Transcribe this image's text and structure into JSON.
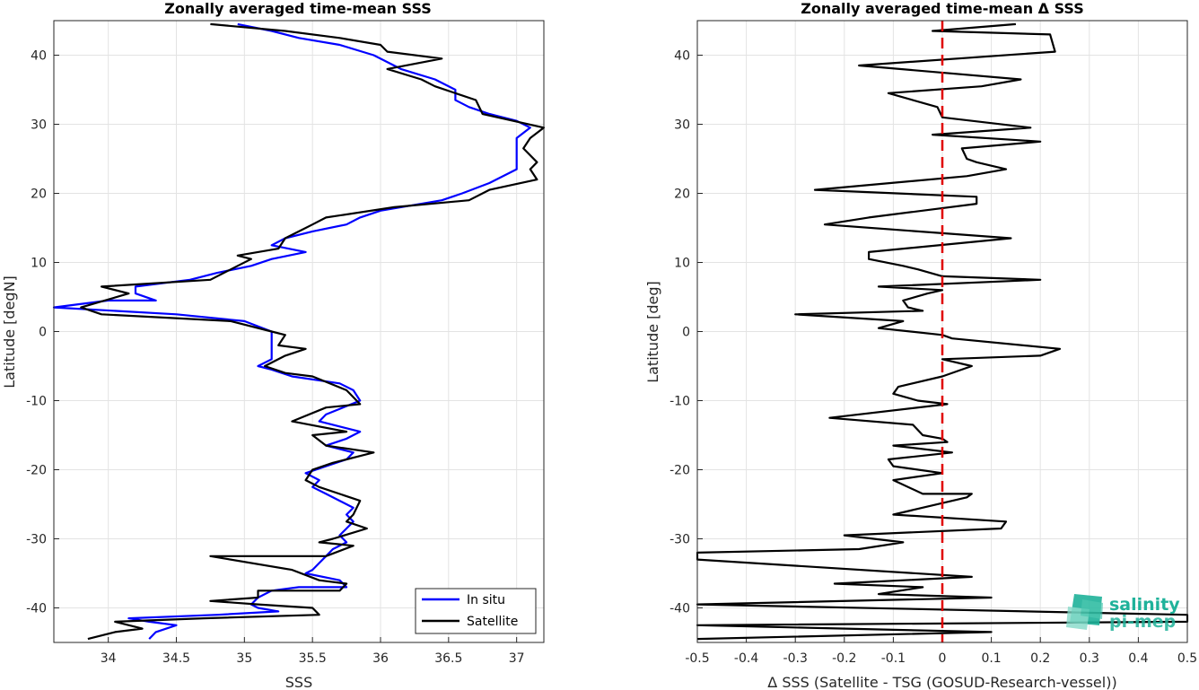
{
  "chart_data": [
    {
      "type": "line",
      "title": "Zonally averaged time-mean SSS",
      "xlabel": "SSS",
      "ylabel": "Latitude [degN]",
      "xlim": [
        33.6,
        37.2
      ],
      "ylim": [
        -45,
        45
      ],
      "xticks": [
        "34",
        "34.5",
        "35",
        "35.5",
        "36",
        "36.5",
        "37"
      ],
      "yticks": [
        "-40",
        "-30",
        "-20",
        "-10",
        "0",
        "10",
        "20",
        "30",
        "40"
      ],
      "grid": true,
      "legend_position": "bottom-right",
      "series": [
        {
          "name": "In situ",
          "color": "#0000ff",
          "points": [
            [
              34.3,
              -44.5
            ],
            [
              34.35,
              -43.5
            ],
            [
              34.5,
              -42.5
            ],
            [
              34.3,
              -42
            ],
            [
              34.15,
              -41.5
            ],
            [
              34.8,
              -41
            ],
            [
              35.25,
              -40.5
            ],
            [
              35.1,
              -40
            ],
            [
              35.05,
              -39.5
            ],
            [
              35.1,
              -38.5
            ],
            [
              35.2,
              -37.5
            ],
            [
              35.4,
              -37
            ],
            [
              35.75,
              -37
            ],
            [
              35.7,
              -36
            ],
            [
              35.45,
              -35
            ],
            [
              35.5,
              -34.5
            ],
            [
              35.55,
              -33.5
            ],
            [
              35.6,
              -32.5
            ],
            [
              35.65,
              -31.5
            ],
            [
              35.75,
              -30.5
            ],
            [
              35.7,
              -29.5
            ],
            [
              35.75,
              -28.5
            ],
            [
              35.8,
              -27.5
            ],
            [
              35.75,
              -26.5
            ],
            [
              35.8,
              -25.5
            ],
            [
              35.7,
              -24.5
            ],
            [
              35.6,
              -23.5
            ],
            [
              35.5,
              -22.5
            ],
            [
              35.55,
              -21.5
            ],
            [
              35.45,
              -20.5
            ],
            [
              35.6,
              -19.5
            ],
            [
              35.75,
              -18.5
            ],
            [
              35.8,
              -17.5
            ],
            [
              35.6,
              -16.5
            ],
            [
              35.75,
              -15.5
            ],
            [
              35.85,
              -14.5
            ],
            [
              35.55,
              -13
            ],
            [
              35.6,
              -12
            ],
            [
              35.85,
              -10
            ],
            [
              35.8,
              -8.5
            ],
            [
              35.7,
              -7.5
            ],
            [
              35.35,
              -6.5
            ],
            [
              35.2,
              -5.5
            ],
            [
              35.1,
              -5
            ],
            [
              35.2,
              -4
            ],
            [
              35.2,
              -2.5
            ],
            [
              35.2,
              -1
            ],
            [
              35.2,
              0
            ],
            [
              35.0,
              1.5
            ],
            [
              34.5,
              2.5
            ],
            [
              33.6,
              3.5
            ],
            [
              34.0,
              4.5
            ],
            [
              34.35,
              4.5
            ],
            [
              34.2,
              5.5
            ],
            [
              34.2,
              6.5
            ],
            [
              34.6,
              7.5
            ],
            [
              34.8,
              8.5
            ],
            [
              35.05,
              9.5
            ],
            [
              35.2,
              10.5
            ],
            [
              35.45,
              11.5
            ],
            [
              35.2,
              12.5
            ],
            [
              35.3,
              13.5
            ],
            [
              35.5,
              14.5
            ],
            [
              35.75,
              15.5
            ],
            [
              35.85,
              16.5
            ],
            [
              36.0,
              17.5
            ],
            [
              36.45,
              19
            ],
            [
              36.6,
              20
            ],
            [
              36.8,
              21.5
            ],
            [
              37.0,
              23.5
            ],
            [
              37.0,
              25
            ],
            [
              37.0,
              26.5
            ],
            [
              37.0,
              28
            ],
            [
              37.1,
              29.5
            ],
            [
              37.0,
              30.5
            ],
            [
              36.8,
              31.5
            ],
            [
              36.65,
              32.5
            ],
            [
              36.55,
              33.5
            ],
            [
              36.55,
              35
            ],
            [
              36.4,
              36.5
            ],
            [
              36.15,
              38
            ],
            [
              35.95,
              40
            ],
            [
              35.7,
              41.5
            ],
            [
              35.4,
              42.5
            ],
            [
              35.2,
              43.5
            ],
            [
              34.95,
              44.5
            ]
          ]
        },
        {
          "name": "Satellite",
          "color": "#000000",
          "points": [
            [
              33.85,
              -44.5
            ],
            [
              34.05,
              -43.5
            ],
            [
              34.25,
              -43
            ],
            [
              34.05,
              -42
            ],
            [
              34.7,
              -41.5
            ],
            [
              35.55,
              -41
            ],
            [
              35.5,
              -40
            ],
            [
              35.1,
              -39.5
            ],
            [
              34.75,
              -39
            ],
            [
              35.1,
              -38.5
            ],
            [
              35.1,
              -37.5
            ],
            [
              35.7,
              -37.5
            ],
            [
              35.75,
              -36.5
            ],
            [
              35.55,
              -36
            ],
            [
              35.35,
              -34.5
            ],
            [
              34.75,
              -32.5
            ],
            [
              35.6,
              -32.5
            ],
            [
              35.8,
              -31
            ],
            [
              35.55,
              -30.5
            ],
            [
              35.65,
              -30
            ],
            [
              35.9,
              -28.5
            ],
            [
              35.75,
              -27.5
            ],
            [
              35.8,
              -26.5
            ],
            [
              35.85,
              -24.5
            ],
            [
              35.55,
              -22.5
            ],
            [
              35.45,
              -21.5
            ],
            [
              35.5,
              -20
            ],
            [
              35.65,
              -19
            ],
            [
              35.75,
              -18.5
            ],
            [
              35.95,
              -17.5
            ],
            [
              35.6,
              -16.5
            ],
            [
              35.5,
              -15
            ],
            [
              35.75,
              -14.5
            ],
            [
              35.35,
              -13
            ],
            [
              35.6,
              -11
            ],
            [
              35.85,
              -10.5
            ],
            [
              35.75,
              -8.5
            ],
            [
              35.5,
              -6.5
            ],
            [
              35.3,
              -6
            ],
            [
              35.15,
              -5
            ],
            [
              35.3,
              -3.5
            ],
            [
              35.45,
              -2.5
            ],
            [
              35.25,
              -2
            ],
            [
              35.3,
              -0.5
            ],
            [
              35.2,
              0
            ],
            [
              34.9,
              1.5
            ],
            [
              33.95,
              2.5
            ],
            [
              33.8,
              3.5
            ],
            [
              34.15,
              5.5
            ],
            [
              33.95,
              6.5
            ],
            [
              34.75,
              7.5
            ],
            [
              34.95,
              9.5
            ],
            [
              35.05,
              10.5
            ],
            [
              34.95,
              11
            ],
            [
              35.25,
              12
            ],
            [
              35.3,
              13.5
            ],
            [
              35.5,
              15.5
            ],
            [
              35.6,
              16.5
            ],
            [
              36.1,
              18
            ],
            [
              36.65,
              19
            ],
            [
              36.8,
              20.5
            ],
            [
              37.15,
              22
            ],
            [
              37.1,
              23.5
            ],
            [
              37.15,
              24.5
            ],
            [
              37.05,
              26.5
            ],
            [
              37.1,
              28
            ],
            [
              37.2,
              29.5
            ],
            [
              36.75,
              31.5
            ],
            [
              36.7,
              33.5
            ],
            [
              36.4,
              35.5
            ],
            [
              36.3,
              36.5
            ],
            [
              36.05,
              38
            ],
            [
              36.45,
              39.5
            ],
            [
              36.05,
              40.5
            ],
            [
              36.0,
              41.5
            ],
            [
              35.7,
              42.5
            ],
            [
              35.3,
              43.5
            ],
            [
              34.75,
              44.5
            ]
          ]
        }
      ]
    },
    {
      "type": "line",
      "title": "Zonally averaged time-mean Δ SSS",
      "xlabel": "Δ SSS (Satellite - TSG (GOSUD-Research-vessel))",
      "ylabel": "Latitude [deg]",
      "xlim": [
        -0.5,
        0.5
      ],
      "ylim": [
        -45,
        45
      ],
      "xticks": [
        "-0.5",
        "-0.4",
        "-0.3",
        "-0.2",
        "-0.1",
        "0",
        "0.1",
        "0.2",
        "0.3",
        "0.4",
        "0.5"
      ],
      "yticks": [
        "-40",
        "-30",
        "-20",
        "-10",
        "0",
        "10",
        "20",
        "30",
        "40"
      ],
      "grid": true,
      "reference_line": {
        "x": 0,
        "color": "#e00000",
        "style": "dashed"
      },
      "series": [
        {
          "color": "#000000",
          "points": [
            [
              0.15,
              44.5
            ],
            [
              -0.02,
              43.5
            ],
            [
              0.22,
              43
            ],
            [
              0.23,
              40.5
            ],
            [
              -0.17,
              38.5
            ],
            [
              0.16,
              36.5
            ],
            [
              0.08,
              35.5
            ],
            [
              -0.11,
              34.5
            ],
            [
              -0.01,
              32.5
            ],
            [
              0.0,
              31
            ],
            [
              0.18,
              29.5
            ],
            [
              -0.02,
              28.5
            ],
            [
              0.2,
              27.5
            ],
            [
              0.04,
              26.5
            ],
            [
              0.05,
              25
            ],
            [
              0.07,
              24.5
            ],
            [
              0.13,
              23.5
            ],
            [
              0.05,
              22.5
            ],
            [
              -0.26,
              20.5
            ],
            [
              0.07,
              19.5
            ],
            [
              0.07,
              18.5
            ],
            [
              -0.15,
              16.5
            ],
            [
              -0.24,
              15.5
            ],
            [
              0.14,
              13.5
            ],
            [
              -0.15,
              11.5
            ],
            [
              -0.15,
              10.5
            ],
            [
              -0.08,
              9.5
            ],
            [
              -0.05,
              9
            ],
            [
              0.0,
              8
            ],
            [
              0.2,
              7.5
            ],
            [
              -0.13,
              6.5
            ],
            [
              0.0,
              6
            ],
            [
              -0.03,
              5.5
            ],
            [
              -0.08,
              4.5
            ],
            [
              -0.07,
              3.5
            ],
            [
              -0.04,
              3
            ],
            [
              -0.3,
              2.5
            ],
            [
              -0.08,
              1.5
            ],
            [
              -0.13,
              0.5
            ],
            [
              0.0,
              -0.5
            ],
            [
              0.02,
              -1
            ],
            [
              0.24,
              -2.5
            ],
            [
              0.2,
              -3.5
            ],
            [
              0.0,
              -4
            ],
            [
              0.06,
              -5
            ],
            [
              0.0,
              -6.5
            ],
            [
              -0.09,
              -8
            ],
            [
              -0.1,
              -9
            ],
            [
              -0.05,
              -10
            ],
            [
              0.01,
              -10.5
            ],
            [
              -0.23,
              -12.5
            ],
            [
              -0.06,
              -13.5
            ],
            [
              -0.04,
              -15
            ],
            [
              0.0,
              -15.5
            ],
            [
              0.01,
              -16
            ],
            [
              -0.1,
              -16.5
            ],
            [
              0.02,
              -17.5
            ],
            [
              0.02,
              -17.5
            ],
            [
              -0.11,
              -18.5
            ],
            [
              -0.1,
              -19.5
            ],
            [
              0.0,
              -20.5
            ],
            [
              -0.1,
              -21.5
            ],
            [
              -0.04,
              -23.5
            ],
            [
              0.06,
              -23.5
            ],
            [
              0.05,
              -24
            ],
            [
              -0.1,
              -26.5
            ],
            [
              0.13,
              -27.5
            ],
            [
              0.12,
              -28.5
            ],
            [
              -0.2,
              -29.5
            ],
            [
              -0.08,
              -30.5
            ],
            [
              -0.17,
              -31.5
            ],
            [
              -0.5,
              -32
            ],
            [
              -0.5,
              -33
            ],
            [
              0.06,
              -35.5
            ],
            [
              -0.22,
              -36.5
            ],
            [
              -0.04,
              -37
            ],
            [
              -0.13,
              -38
            ],
            [
              0.1,
              -38.5
            ],
            [
              -0.5,
              -39.5
            ],
            [
              0.5,
              -41
            ],
            [
              0.5,
              -42
            ],
            [
              -0.5,
              -42.5
            ],
            [
              0.1,
              -43.5
            ],
            [
              -0.5,
              -44.5
            ]
          ]
        }
      ]
    }
  ],
  "logo": {
    "line1": "salinity",
    "line2": "pi-mep"
  }
}
